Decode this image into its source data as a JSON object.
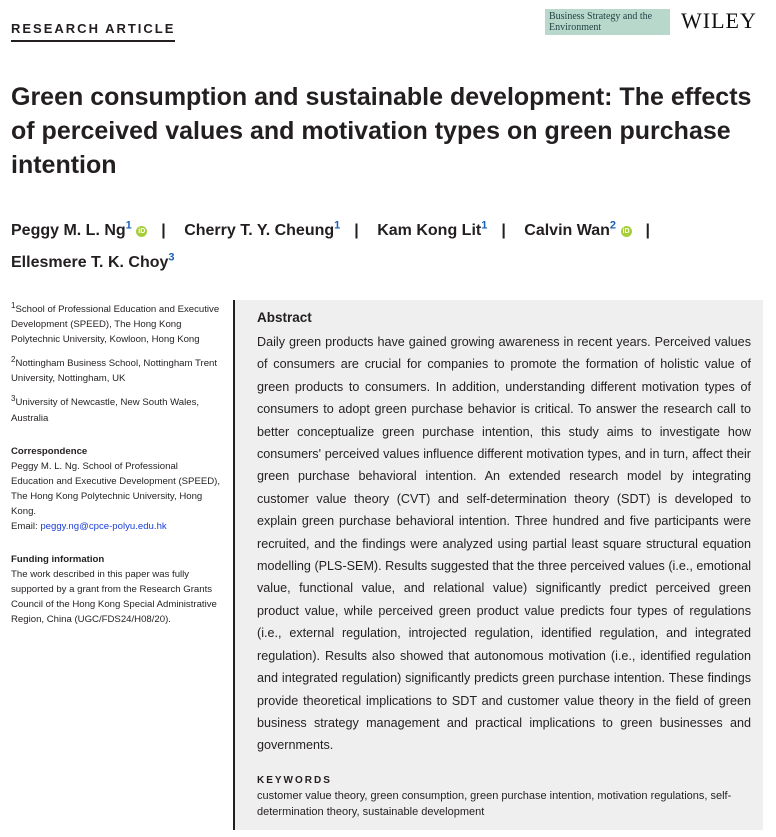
{
  "header": {
    "label": "RESEARCH ARTICLE",
    "journal": "Business Strategy and the Environment",
    "publisher": "WILEY"
  },
  "title": "Green consumption and sustainable development: The effects of perceived values and motivation types on green purchase intention",
  "authors": [
    {
      "name": "Peggy M. L. Ng",
      "aff": "1",
      "orcid": true
    },
    {
      "name": "Cherry T. Y. Cheung",
      "aff": "1",
      "orcid": false
    },
    {
      "name": "Kam Kong Lit",
      "aff": "1",
      "orcid": false
    },
    {
      "name": "Calvin Wan",
      "aff": "2",
      "orcid": true
    },
    {
      "name": "Ellesmere T. K. Choy",
      "aff": "3",
      "orcid": false
    }
  ],
  "affiliations": [
    {
      "num": "1",
      "text": "School of Professional Education and Executive Development (SPEED), The Hong Kong Polytechnic University, Kowloon, Hong Kong"
    },
    {
      "num": "2",
      "text": "Nottingham Business School, Nottingham Trent University, Nottingham, UK"
    },
    {
      "num": "3",
      "text": "University of Newcastle, New South Wales, Australia"
    }
  ],
  "correspondence": {
    "heading": "Correspondence",
    "text": "Peggy M. L. Ng. School of Professional Education and Executive Development (SPEED), The Hong Kong Polytechnic University, Hong Kong.",
    "email_label": "Email:",
    "email": "peggy.ng@cpce-polyu.edu.hk"
  },
  "funding": {
    "heading": "Funding information",
    "text": "The work described in this paper was fully supported by a grant from the Research Grants Council of the Hong Kong Special Administrative Region, China (UGC/FDS24/H08/20)."
  },
  "abstract": {
    "heading": "Abstract",
    "text": "Daily green products have gained growing awareness in recent years. Perceived values of consumers are crucial for companies to promote the formation of holistic value of green products to consumers. In addition, understanding different motivation types of consumers to adopt green purchase behavior is critical. To answer the research call to better conceptualize green purchase intention, this study aims to investigate how consumers' perceived values influence different motivation types, and in turn, affect their green purchase behavioral intention. An extended research model by integrating customer value theory (CVT) and self-determination theory (SDT) is developed to explain green purchase behavioral intention. Three hundred and five participants were recruited, and the findings were analyzed using partial least square structural equation modelling (PLS-SEM). Results suggested that the three perceived values (i.e., emotional value, functional value, and relational value) significantly predict perceived green product value, while perceived green product value predicts four types of regulations (i.e., external regulation, introjected regulation, identified regulation, and integrated regulation). Results also showed that autonomous motivation (i.e., identified regulation and integrated regulation) significantly predicts green purchase intention. These findings provide theoretical implications to SDT and customer value theory in the field of green business strategy management and practical implications to green businesses and governments."
  },
  "keywords": {
    "heading": "KEYWORDS",
    "text": "customer value theory, green consumption, green purchase intention, motivation regulations, self-determination theory, sustainable development"
  }
}
